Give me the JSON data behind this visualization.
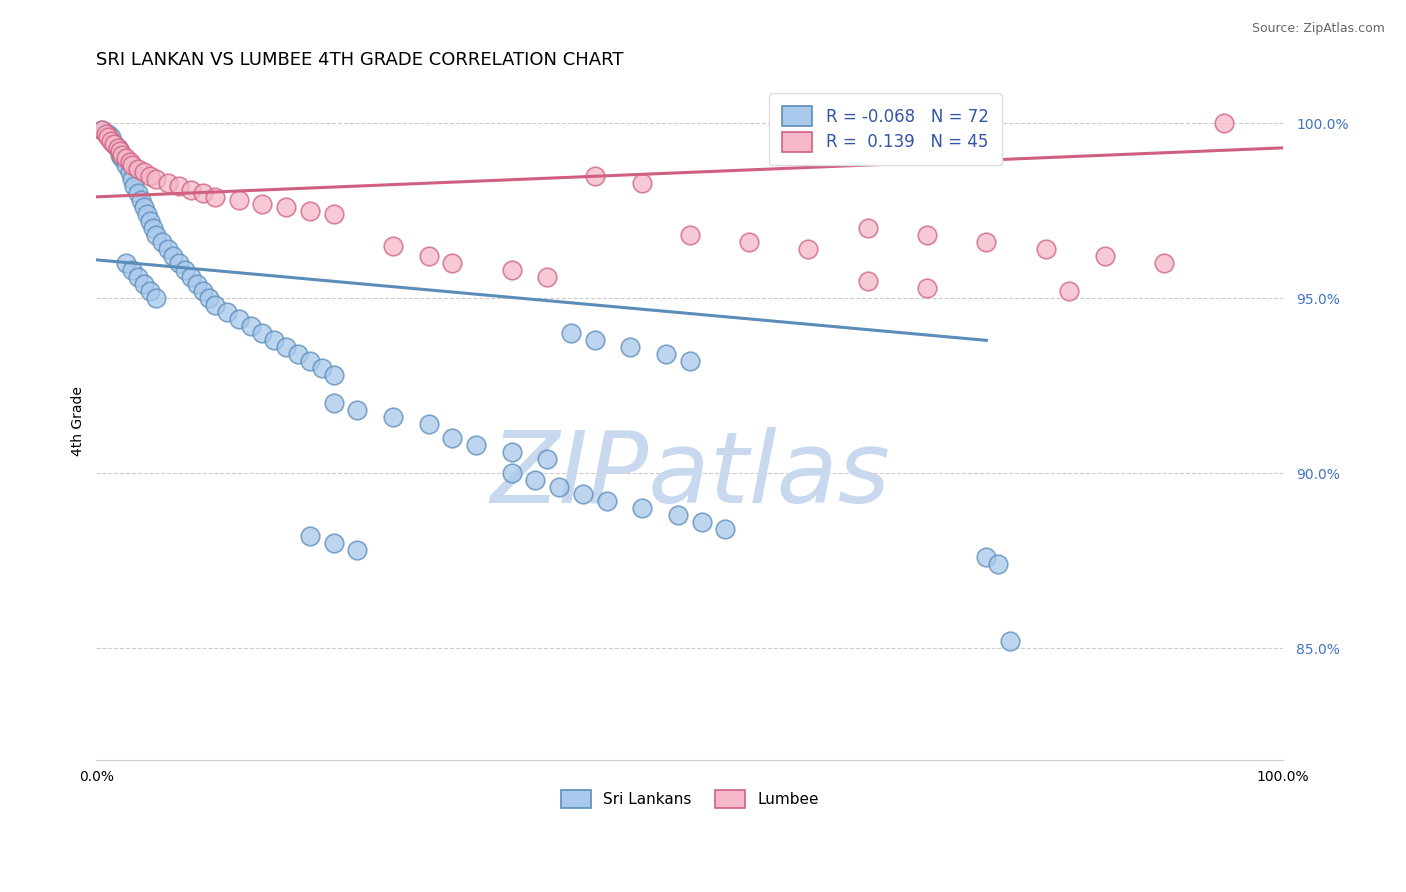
{
  "title": "SRI LANKAN VS LUMBEE 4TH GRADE CORRELATION CHART",
  "source_text": "Source: ZipAtlas.com",
  "ylabel": "4th Grade",
  "watermark": "ZIPatlas",
  "xlim": [
    0.0,
    1.0
  ],
  "ylim": [
    0.818,
    1.012
  ],
  "yticks": [
    0.85,
    0.9,
    0.95,
    1.0
  ],
  "yticklabels": [
    "85.0%",
    "90.0%",
    "95.0%",
    "100.0%"
  ],
  "xticks": [
    0.0,
    1.0
  ],
  "xticklabels": [
    "0.0%",
    "100.0%"
  ],
  "blue_R": -0.068,
  "blue_N": 72,
  "pink_R": 0.139,
  "pink_N": 45,
  "blue_color": "#A8C8EC",
  "blue_edge_color": "#5B8DB8",
  "pink_color": "#F4B8C8",
  "pink_edge_color": "#D06080",
  "blue_scatter_x": [
    0.005,
    0.01,
    0.012,
    0.015,
    0.018,
    0.02,
    0.022,
    0.025,
    0.028,
    0.03,
    0.032,
    0.035,
    0.038,
    0.04,
    0.043,
    0.045,
    0.048,
    0.05,
    0.055,
    0.06,
    0.065,
    0.07,
    0.075,
    0.08,
    0.085,
    0.09,
    0.095,
    0.1,
    0.11,
    0.12,
    0.13,
    0.14,
    0.15,
    0.16,
    0.17,
    0.18,
    0.19,
    0.2,
    0.025,
    0.03,
    0.035,
    0.04,
    0.045,
    0.05,
    0.2,
    0.22,
    0.25,
    0.28,
    0.3,
    0.32,
    0.35,
    0.38,
    0.4,
    0.42,
    0.45,
    0.48,
    0.5,
    0.35,
    0.37,
    0.39,
    0.41,
    0.43,
    0.46,
    0.49,
    0.51,
    0.53,
    0.18,
    0.2,
    0.22,
    0.75,
    0.76,
    0.77
  ],
  "blue_scatter_y": [
    0.998,
    0.997,
    0.996,
    0.994,
    0.993,
    0.991,
    0.99,
    0.988,
    0.986,
    0.984,
    0.982,
    0.98,
    0.978,
    0.976,
    0.974,
    0.972,
    0.97,
    0.968,
    0.966,
    0.964,
    0.962,
    0.96,
    0.958,
    0.956,
    0.954,
    0.952,
    0.95,
    0.948,
    0.946,
    0.944,
    0.942,
    0.94,
    0.938,
    0.936,
    0.934,
    0.932,
    0.93,
    0.928,
    0.96,
    0.958,
    0.956,
    0.954,
    0.952,
    0.95,
    0.92,
    0.918,
    0.916,
    0.914,
    0.91,
    0.908,
    0.906,
    0.904,
    0.94,
    0.938,
    0.936,
    0.934,
    0.932,
    0.9,
    0.898,
    0.896,
    0.894,
    0.892,
    0.89,
    0.888,
    0.886,
    0.884,
    0.882,
    0.88,
    0.878,
    0.876,
    0.874,
    0.852
  ],
  "pink_scatter_x": [
    0.005,
    0.008,
    0.01,
    0.012,
    0.015,
    0.018,
    0.02,
    0.022,
    0.025,
    0.028,
    0.03,
    0.035,
    0.04,
    0.045,
    0.05,
    0.06,
    0.07,
    0.08,
    0.09,
    0.1,
    0.12,
    0.14,
    0.16,
    0.18,
    0.2,
    0.25,
    0.28,
    0.3,
    0.35,
    0.38,
    0.42,
    0.46,
    0.5,
    0.55,
    0.6,
    0.65,
    0.7,
    0.75,
    0.8,
    0.85,
    0.9,
    0.95,
    0.65,
    0.7,
    0.82
  ],
  "pink_scatter_y": [
    0.998,
    0.997,
    0.996,
    0.995,
    0.994,
    0.993,
    0.992,
    0.991,
    0.99,
    0.989,
    0.988,
    0.987,
    0.986,
    0.985,
    0.984,
    0.983,
    0.982,
    0.981,
    0.98,
    0.979,
    0.978,
    0.977,
    0.976,
    0.975,
    0.974,
    0.965,
    0.962,
    0.96,
    0.958,
    0.956,
    0.985,
    0.983,
    0.968,
    0.966,
    0.964,
    0.97,
    0.968,
    0.966,
    0.964,
    0.962,
    0.96,
    1.0,
    0.955,
    0.953,
    0.952
  ],
  "legend_blue_label": "Sri Lankans",
  "legend_pink_label": "Lumbee",
  "blue_trendline": [
    0.0,
    0.961,
    0.75,
    0.938
  ],
  "pink_trendline": [
    0.0,
    0.979,
    1.0,
    0.993
  ],
  "grid_color": "#CCCCCC",
  "background_color": "#FFFFFF",
  "title_fontsize": 13,
  "axis_label_fontsize": 10,
  "tick_fontsize": 10,
  "tick_color": "#4472C4",
  "marker_size": 180,
  "watermark_color": "#C8D8EE",
  "watermark_fontsize": 72
}
